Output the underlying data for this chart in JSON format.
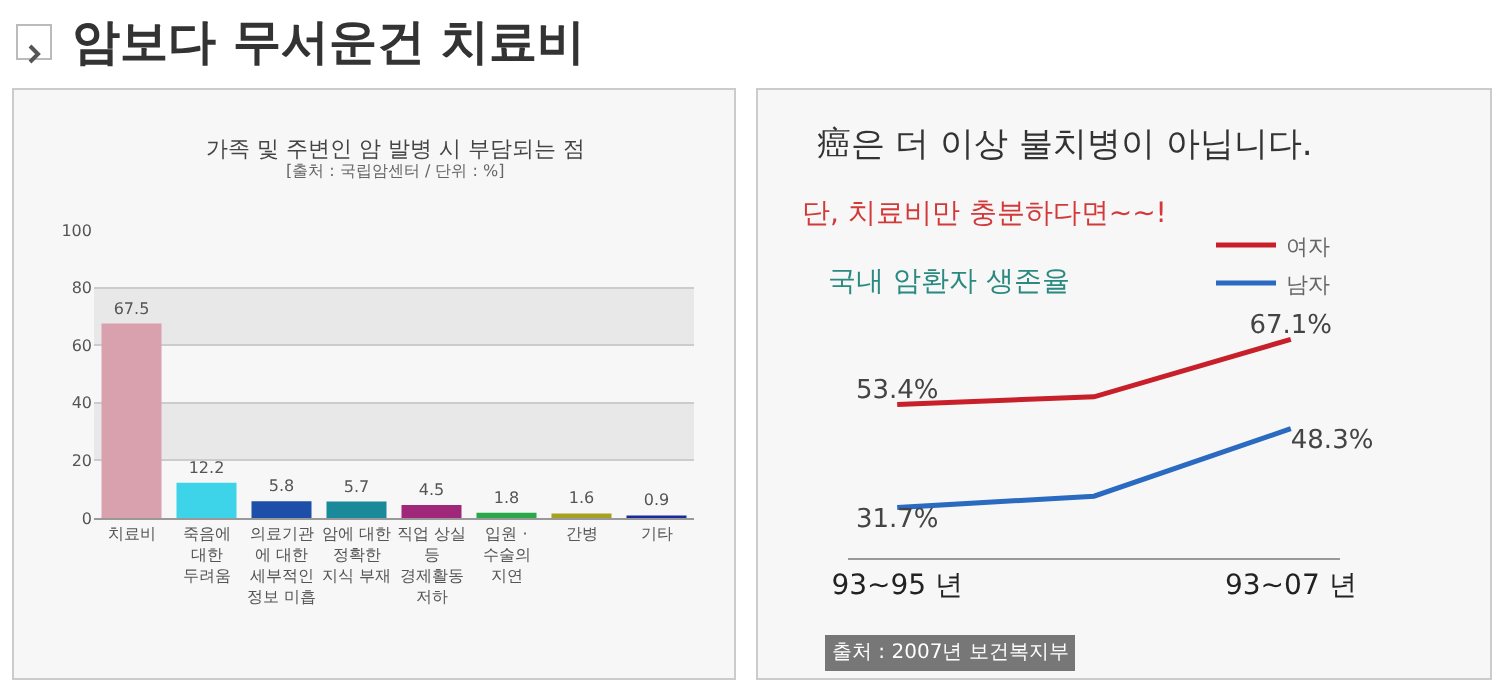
{
  "chart_data": [
    {
      "type": "bar",
      "title": "암보다 무서운건 치료비",
      "subtitle": "가족 및 주변인 암 발병 시 부담되는 점",
      "annotations": [
        "[출처 : 국립암센터 / 단위 : %]"
      ],
      "categories": [
        "치료비",
        "죽음에\n대한\n두려움",
        "의료기관\n에 대한\n세부적인\n정보 미흡",
        "암에 대한\n정확한\n지식 부재",
        "직업 상실\n등\n경제활동\n저하",
        "입원 ·\n수술의\n지연",
        "간병",
        "기타"
      ],
      "values": [
        67.5,
        12.2,
        5.8,
        5.7,
        4.5,
        1.8,
        1.6,
        0.9
      ],
      "colors": [
        "#d9a0ad",
        "#3dd3e8",
        "#1e4fa8",
        "#1a8a9a",
        "#a0287a",
        "#2aa84a",
        "#a8a020",
        "#1a2a9a"
      ],
      "ylim": [
        0,
        100
      ],
      "yticks": [
        0,
        20,
        40,
        60,
        80,
        100
      ],
      "grid": "y",
      "data_labels": true
    },
    {
      "type": "line",
      "title": "癌은 더 이상 불치병이 아닙니다.",
      "subtitle": "단, 치료비만 충분하다면~~!",
      "annotations": [
        "국내 암환자 생존율",
        "출처 : 2007년 보건복지부"
      ],
      "categories": [
        "93~95 년",
        null,
        "93~07 년"
      ],
      "series": [
        {
          "name": "여자",
          "color": "#c8202a",
          "values": [
            53.4,
            55.0,
            67.1
          ],
          "value_labels": [
            "53.4%",
            null,
            "67.1%"
          ]
        },
        {
          "name": "남자",
          "color": "#2a6ac0",
          "values": [
            31.7,
            34.1,
            48.3
          ],
          "value_labels": [
            "31.7%",
            null,
            "48.3%"
          ]
        }
      ],
      "legend": "top right",
      "tick_labels": "x",
      "marker": "none",
      "line_style": "solid"
    }
  ]
}
